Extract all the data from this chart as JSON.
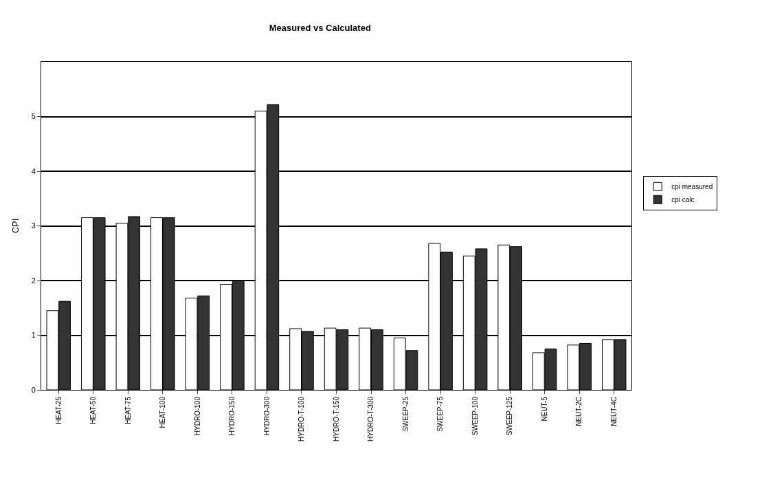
{
  "chart_data": {
    "type": "bar",
    "title": "Measured vs Calculated",
    "ylabel": "CPI",
    "categories": [
      "HEAT-25",
      "HEAT-50",
      "HEAT-75",
      "HEAT-100",
      "HYDRO-100",
      "HYDRO-150",
      "HYDRO-300",
      "HYDRO-T-100",
      "HYDRO-T-150",
      "HYDRO-T-300",
      "SWEEP-25",
      "SWEEP-75",
      "SWEEP-100",
      "SWEEP-125",
      "NEUT-5",
      "NEUT-2C",
      "NEUT-4C"
    ],
    "series": [
      {
        "name": "cpi measured",
        "color": "#ffffff",
        "values": [
          1.45,
          3.15,
          3.05,
          3.15,
          1.68,
          1.93,
          5.1,
          1.12,
          1.13,
          1.13,
          0.95,
          2.68,
          2.45,
          2.65,
          0.68,
          0.82,
          0.92
        ]
      },
      {
        "name": "cpi calc",
        "color": "#333333",
        "values": [
          1.62,
          3.15,
          3.17,
          3.15,
          1.72,
          2.0,
          5.22,
          1.07,
          1.1,
          1.1,
          0.72,
          2.52,
          2.58,
          2.62,
          0.75,
          0.85,
          0.92
        ]
      }
    ],
    "ylim": [
      0,
      6
    ],
    "yticks": [
      0,
      1,
      2,
      3,
      4,
      5
    ],
    "grid": "y",
    "legend": "right"
  }
}
